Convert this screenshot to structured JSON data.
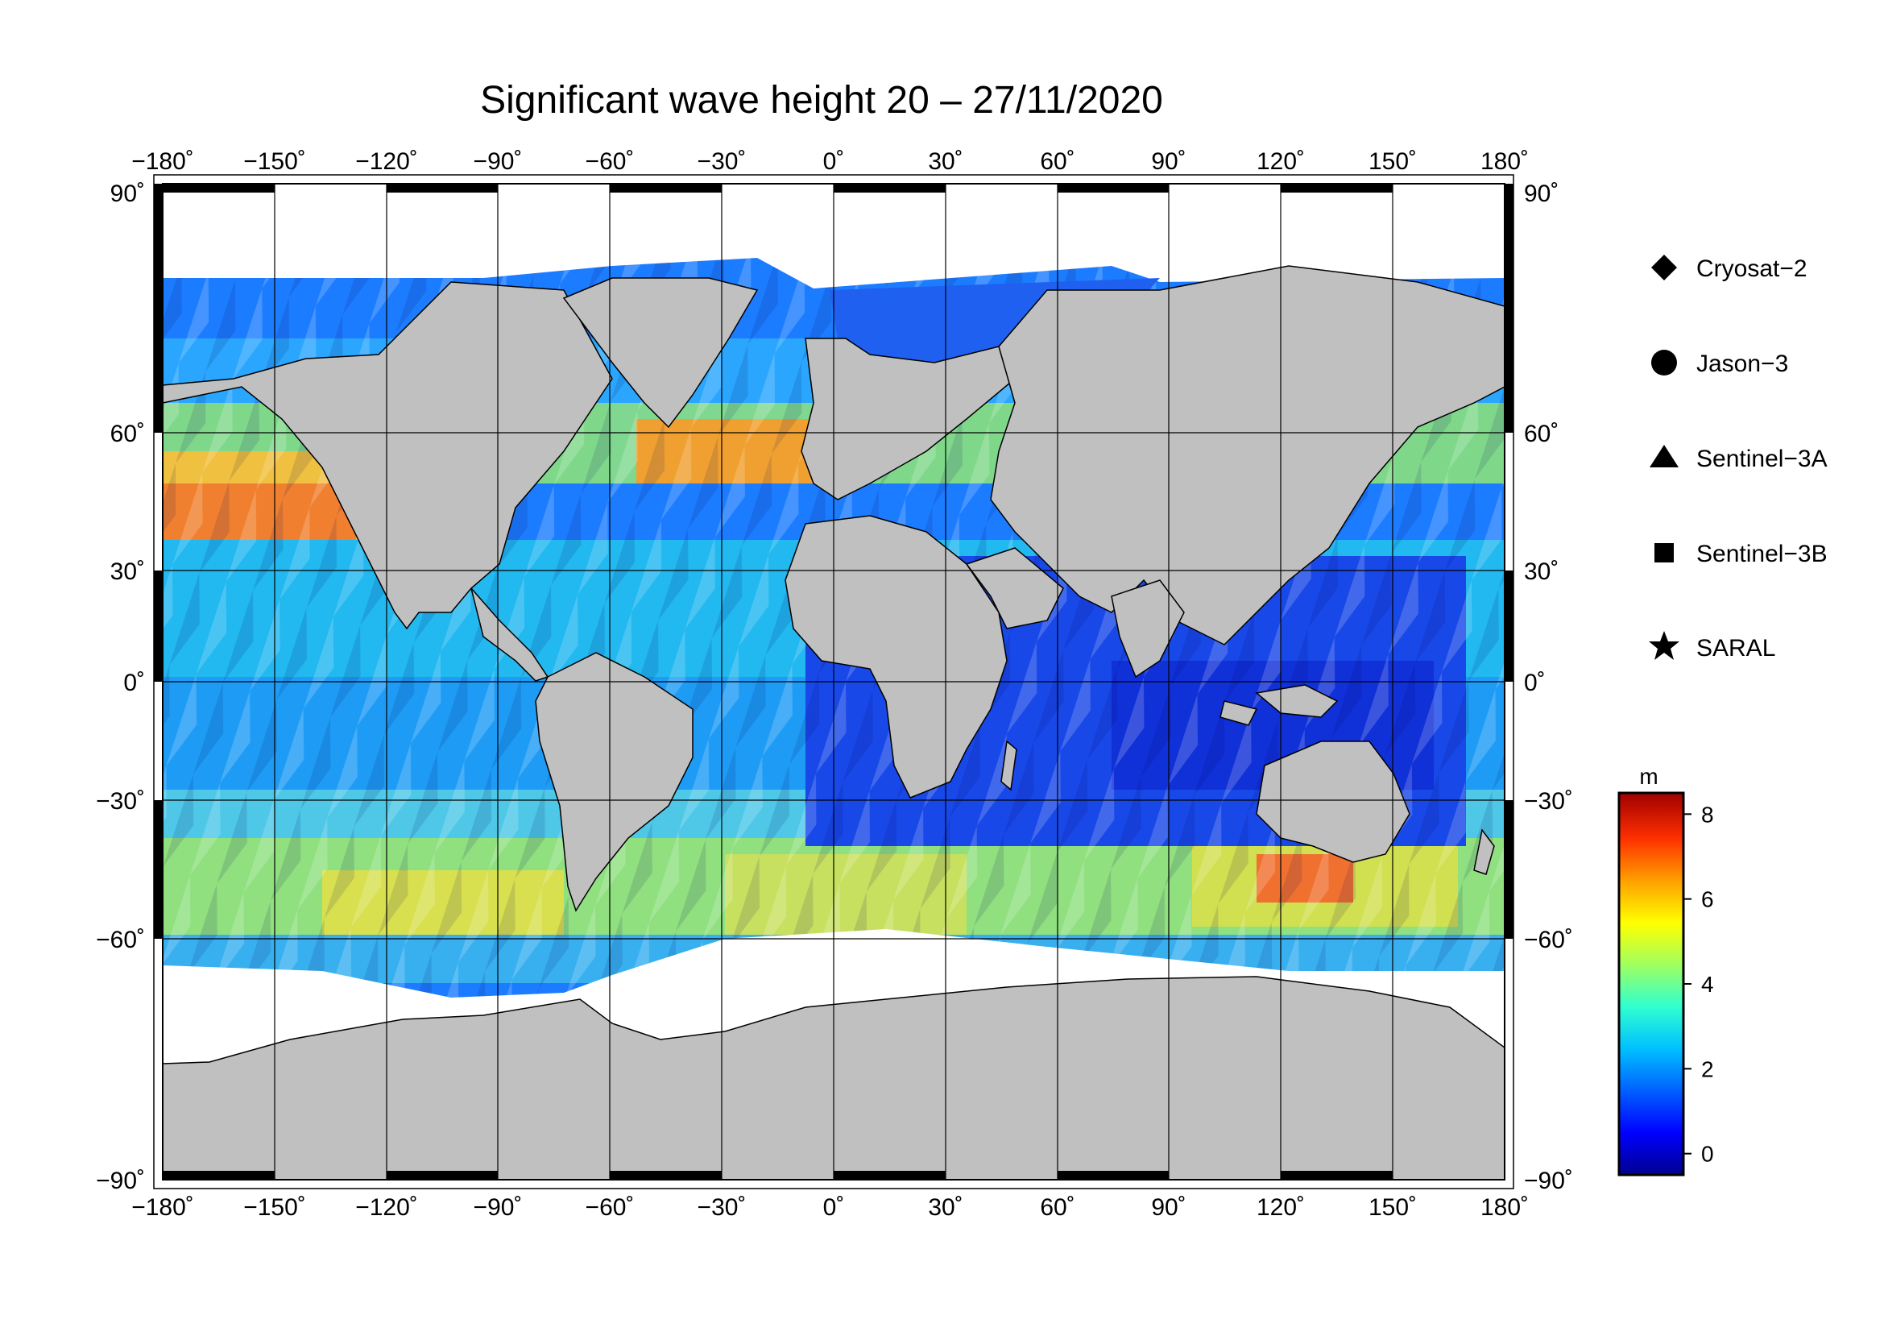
{
  "title": "Significant wave height 20 – 27/11/2020",
  "map": {
    "projection": "equirectangular",
    "lon_range": [
      -180,
      180
    ],
    "lat_range": [
      -90,
      90
    ],
    "grid": true,
    "land_color": "#c0c0c0",
    "sea_ice_color": "#ffffff",
    "lon_ticks": [
      "−180˚",
      "−150˚",
      "−120˚",
      "−90˚",
      "−60˚",
      "−30˚",
      "0˚",
      "30˚",
      "60˚",
      "90˚",
      "120˚",
      "150˚",
      "180˚"
    ],
    "lat_ticks": [
      "90˚",
      "60˚",
      "30˚",
      "0˚",
      "−30˚",
      "−60˚",
      "−90˚"
    ]
  },
  "legend": {
    "items": [
      {
        "label": "Cryosat−2",
        "icon": "diamond-icon"
      },
      {
        "label": "Jason−3",
        "icon": "circle-icon"
      },
      {
        "label": "Sentinel−3A",
        "icon": "triangle-icon"
      },
      {
        "label": "Sentinel−3B",
        "icon": "square-icon"
      },
      {
        "label": "SARAL",
        "icon": "star-icon"
      }
    ]
  },
  "colorbar": {
    "unit": "m",
    "min": -0.5,
    "max": 8.5,
    "ticks": [
      "0",
      "2",
      "4",
      "6",
      "8"
    ],
    "colors": [
      "#00008f",
      "#0000ff",
      "#0060ff",
      "#00c0ff",
      "#30ffd0",
      "#a0ff60",
      "#ffff00",
      "#ffa000",
      "#ff3000",
      "#a00000"
    ]
  }
}
